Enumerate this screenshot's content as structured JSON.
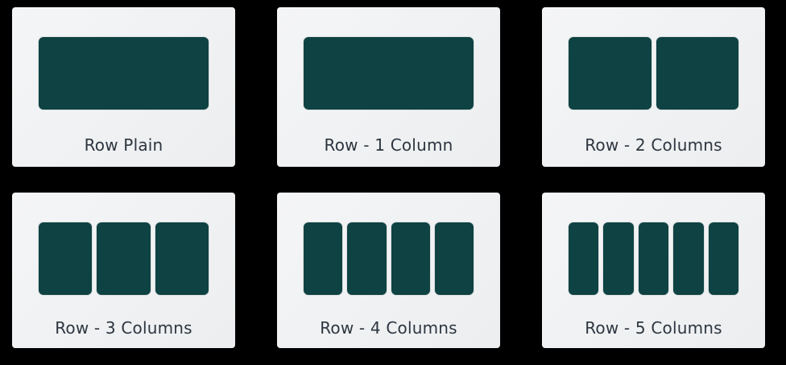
{
  "layouts": [
    {
      "label": "Row Plain",
      "columns": 1
    },
    {
      "label": "Row - 1 Column",
      "columns": 1
    },
    {
      "label": "Row - 2 Columns",
      "columns": 2
    },
    {
      "label": "Row - 3 Columns",
      "columns": 3
    },
    {
      "label": "Row - 4 Columns",
      "columns": 4
    },
    {
      "label": "Row - 5 Columns",
      "columns": 5
    }
  ],
  "colors": {
    "block": "#0e4243",
    "card": "#f0f2f3",
    "label": "#2d3640"
  }
}
